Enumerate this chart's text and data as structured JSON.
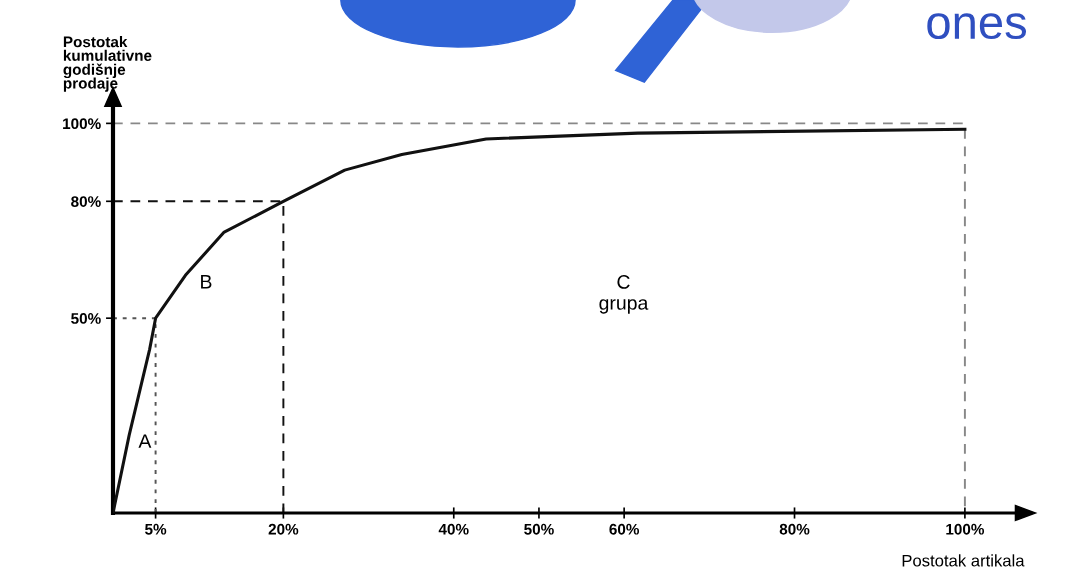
{
  "chart_data": {
    "type": "line",
    "xlabel": "Postotak artikala",
    "ylabel": "Postotak\nkumulativne\ngodišnje\nprodaje",
    "xlim": [
      0,
      107
    ],
    "ylim": [
      0,
      106
    ],
    "xticks": [
      {
        "value": 5,
        "label": "5%"
      },
      {
        "value": 20,
        "label": "20%"
      },
      {
        "value": 40,
        "label": "40%"
      },
      {
        "value": 50,
        "label": "50%"
      },
      {
        "value": 60,
        "label": "60%"
      },
      {
        "value": 80,
        "label": "80%"
      },
      {
        "value": 100,
        "label": "100%"
      }
    ],
    "yticks": [
      {
        "value": 50,
        "label": "50%"
      },
      {
        "value": 80,
        "label": "80%"
      },
      {
        "value": 100,
        "label": "100%"
      }
    ],
    "grid": false,
    "legend": false,
    "marker": "none",
    "series": [
      {
        "color": "#111111",
        "line_style": "solid",
        "x": [
          0,
          1.9,
          4.3,
          5,
          8.5,
          13,
          20,
          27.2,
          33.9,
          43.8,
          61.6,
          100
        ],
        "values": [
          0,
          20,
          42,
          50,
          61,
          72,
          80,
          88,
          92,
          96,
          97.5,
          98.5
        ]
      },
      {
        "color": "#888888",
        "line_style": "dashed",
        "x": [
          0,
          100,
          100
        ],
        "values": [
          100,
          100,
          0
        ]
      },
      {
        "color": "#111111",
        "line_style": "dashed",
        "x": [
          0,
          20,
          20
        ],
        "values": [
          80,
          80,
          0
        ]
      },
      {
        "color": "#555555",
        "line_style": "dotted",
        "x": [
          0,
          5,
          5
        ],
        "values": [
          50,
          50,
          0
        ]
      }
    ],
    "annotations": [
      "A",
      "B",
      "C\ngrupa",
      "ones"
    ]
  }
}
